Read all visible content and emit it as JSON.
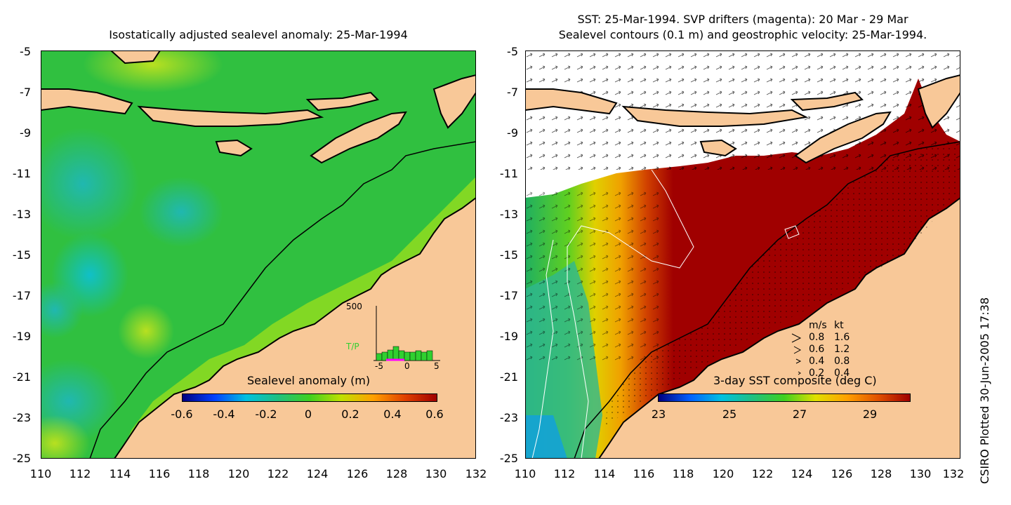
{
  "left": {
    "title": "Isostatically adjusted sealevel anomaly: 25-Mar-1994",
    "yticks": [
      "-5",
      "-7",
      "-9",
      "-11",
      "-13",
      "-15",
      "-17",
      "-19",
      "-21",
      "-23",
      "-25"
    ],
    "xticks": [
      "110",
      "112",
      "114",
      "116",
      "118",
      "120",
      "122",
      "124",
      "126",
      "128",
      "130",
      "132"
    ],
    "colorbar": {
      "label": "Sealevel anomaly (m)",
      "ticks": [
        "-0.6",
        "-0.4",
        "-0.2",
        "0",
        "0.2",
        "0.4",
        "0.6"
      ],
      "colors": [
        "#000080",
        "#0040ff",
        "#00c0e0",
        "#20c080",
        "#40d020",
        "#c0e000",
        "#ffa000",
        "#e04000",
        "#a00000"
      ]
    },
    "histogram": {
      "ymax_label": "500",
      "series_label": "T/P",
      "x_labels": [
        "-5",
        "0",
        "5"
      ]
    }
  },
  "right": {
    "title_line1": "SST: 25-Mar-1994. SVP drifters (magenta): 20 Mar - 29 Mar",
    "title_line2": "Sealevel contours (0.1 m) and geostrophic velocity: 25-Mar-1994.",
    "yticks": [
      "-5",
      "-7",
      "-9",
      "-11",
      "-13",
      "-15",
      "-17",
      "-19",
      "-21",
      "-23",
      "-25"
    ],
    "xticks": [
      "110",
      "112",
      "114",
      "116",
      "118",
      "120",
      "122",
      "124",
      "126",
      "128",
      "130",
      "132"
    ],
    "colorbar": {
      "label": "3-day SST composite (deg C)",
      "ticks": [
        "23",
        "25",
        "27",
        "29"
      ],
      "colors": [
        "#000080",
        "#0060ff",
        "#00c0e0",
        "#20c080",
        "#40d020",
        "#e0e000",
        "#ffa000",
        "#e05000",
        "#a00000"
      ]
    },
    "velocity_key": {
      "header_ms": "m/s",
      "header_kt": "kt",
      "rows": [
        {
          "ms": "0.8",
          "kt": "1.6"
        },
        {
          "ms": "0.6",
          "kt": "1.2"
        },
        {
          "ms": "0.4",
          "kt": "0.8"
        },
        {
          "ms": "0.2",
          "kt": "0.4"
        }
      ]
    }
  },
  "side_label": "CSIRO Plotted 30-Jun-2005 17:38",
  "colors": {
    "land": "#f8c898",
    "coast": "#000000",
    "sla_ocean": "#30c840",
    "sst_warm": "#a00000"
  }
}
